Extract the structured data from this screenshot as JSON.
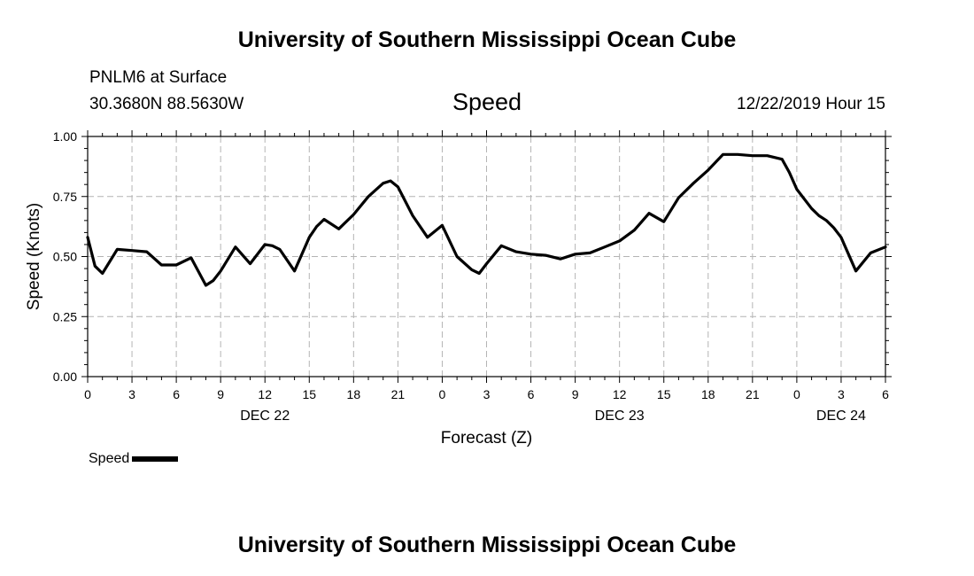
{
  "header": {
    "title_top": "University of Southern Mississippi Ocean Cube",
    "station": "PNLM6 at Surface",
    "coords": "30.3680N 88.5630W",
    "variable": "Speed",
    "datetime": "12/22/2019 Hour 15"
  },
  "footer": {
    "title_bottom": "University of Southern Mississippi Ocean Cube"
  },
  "legend": {
    "label": "Speed",
    "color": "#000000"
  },
  "chart_data": {
    "type": "line",
    "title": "Speed",
    "xlabel": "Forecast (Z)",
    "ylabel": "Speed (Knots)",
    "xlim": [
      0,
      54
    ],
    "ylim": [
      0,
      1.0
    ],
    "grid": true,
    "yticks": [
      0.0,
      0.25,
      0.5,
      0.75,
      1.0
    ],
    "ytick_labels": [
      "0.00",
      "0.25",
      "0.50",
      "0.75",
      "1.00"
    ],
    "xticks": [
      0,
      3,
      6,
      9,
      12,
      15,
      18,
      21,
      24,
      27,
      30,
      33,
      36,
      39,
      42,
      45,
      48,
      51,
      54
    ],
    "xtick_labels": [
      "0",
      "3",
      "6",
      "9",
      "12",
      "15",
      "18",
      "21",
      "0",
      "3",
      "6",
      "9",
      "12",
      "15",
      "18",
      "21",
      "0",
      "3",
      "6"
    ],
    "date_labels": [
      {
        "x": 12,
        "label": "DEC 22"
      },
      {
        "x": 36,
        "label": "DEC 23"
      },
      {
        "x": 51,
        "label": "DEC 24"
      }
    ],
    "series": [
      {
        "name": "Speed",
        "color": "#000000",
        "x": [
          0,
          0.5,
          1,
          2,
          3,
          4,
          5,
          6,
          7,
          8,
          8.5,
          9,
          10,
          11,
          12,
          12.5,
          13,
          14,
          15,
          15.5,
          16,
          17,
          18,
          19,
          20,
          20.5,
          21,
          22,
          23,
          24,
          25,
          26,
          26.5,
          27,
          28,
          29,
          30,
          31,
          32,
          33,
          34,
          35,
          36,
          37,
          38,
          39,
          40,
          41,
          42,
          43,
          44,
          45,
          46,
          47,
          47.5,
          48,
          49,
          49.5,
          50,
          50.5,
          51,
          52,
          53,
          54
        ],
        "values": [
          0.58,
          0.46,
          0.43,
          0.53,
          0.525,
          0.52,
          0.465,
          0.465,
          0.495,
          0.38,
          0.4,
          0.44,
          0.54,
          0.47,
          0.55,
          0.545,
          0.53,
          0.44,
          0.58,
          0.625,
          0.655,
          0.615,
          0.675,
          0.75,
          0.805,
          0.815,
          0.79,
          0.67,
          0.58,
          0.63,
          0.5,
          0.445,
          0.43,
          0.47,
          0.545,
          0.52,
          0.51,
          0.505,
          0.49,
          0.51,
          0.515,
          0.54,
          0.565,
          0.61,
          0.68,
          0.645,
          0.745,
          0.805,
          0.86,
          0.925,
          0.925,
          0.92,
          0.92,
          0.905,
          0.85,
          0.78,
          0.7,
          0.67,
          0.65,
          0.62,
          0.58,
          0.44,
          0.515,
          0.54
        ]
      }
    ]
  }
}
